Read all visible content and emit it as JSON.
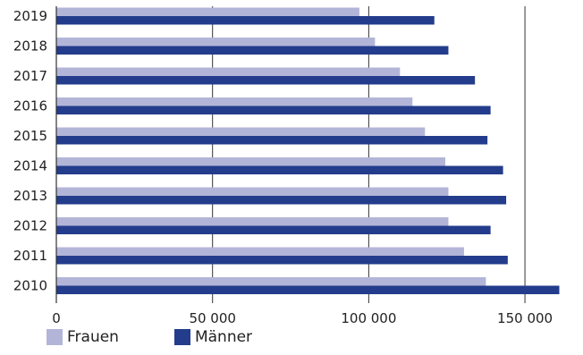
{
  "chart_data": {
    "type": "bar",
    "orientation": "horizontal",
    "categories": [
      "2019",
      "2018",
      "2017",
      "2016",
      "2015",
      "2014",
      "2013",
      "2012",
      "2011",
      "2010"
    ],
    "series": [
      {
        "name": "Frauen",
        "color": "#b3b5d8",
        "values": [
          97000,
          102000,
          110000,
          114000,
          118000,
          124500,
          125500,
          125500,
          130500,
          137500
        ]
      },
      {
        "name": "Männer",
        "color": "#233c8c",
        "values": [
          121000,
          125500,
          134000,
          139000,
          138000,
          143000,
          144000,
          139000,
          144500,
          161000
        ]
      }
    ],
    "xlim": [
      0,
      160000
    ],
    "xticks": [
      0,
      50000,
      100000,
      150000
    ],
    "xtick_labels": [
      "0",
      "50 000",
      "100 000",
      "150 000"
    ],
    "grid": "vertical",
    "legend_position": "bottom-left",
    "title": "",
    "xlabel": "",
    "ylabel": ""
  }
}
